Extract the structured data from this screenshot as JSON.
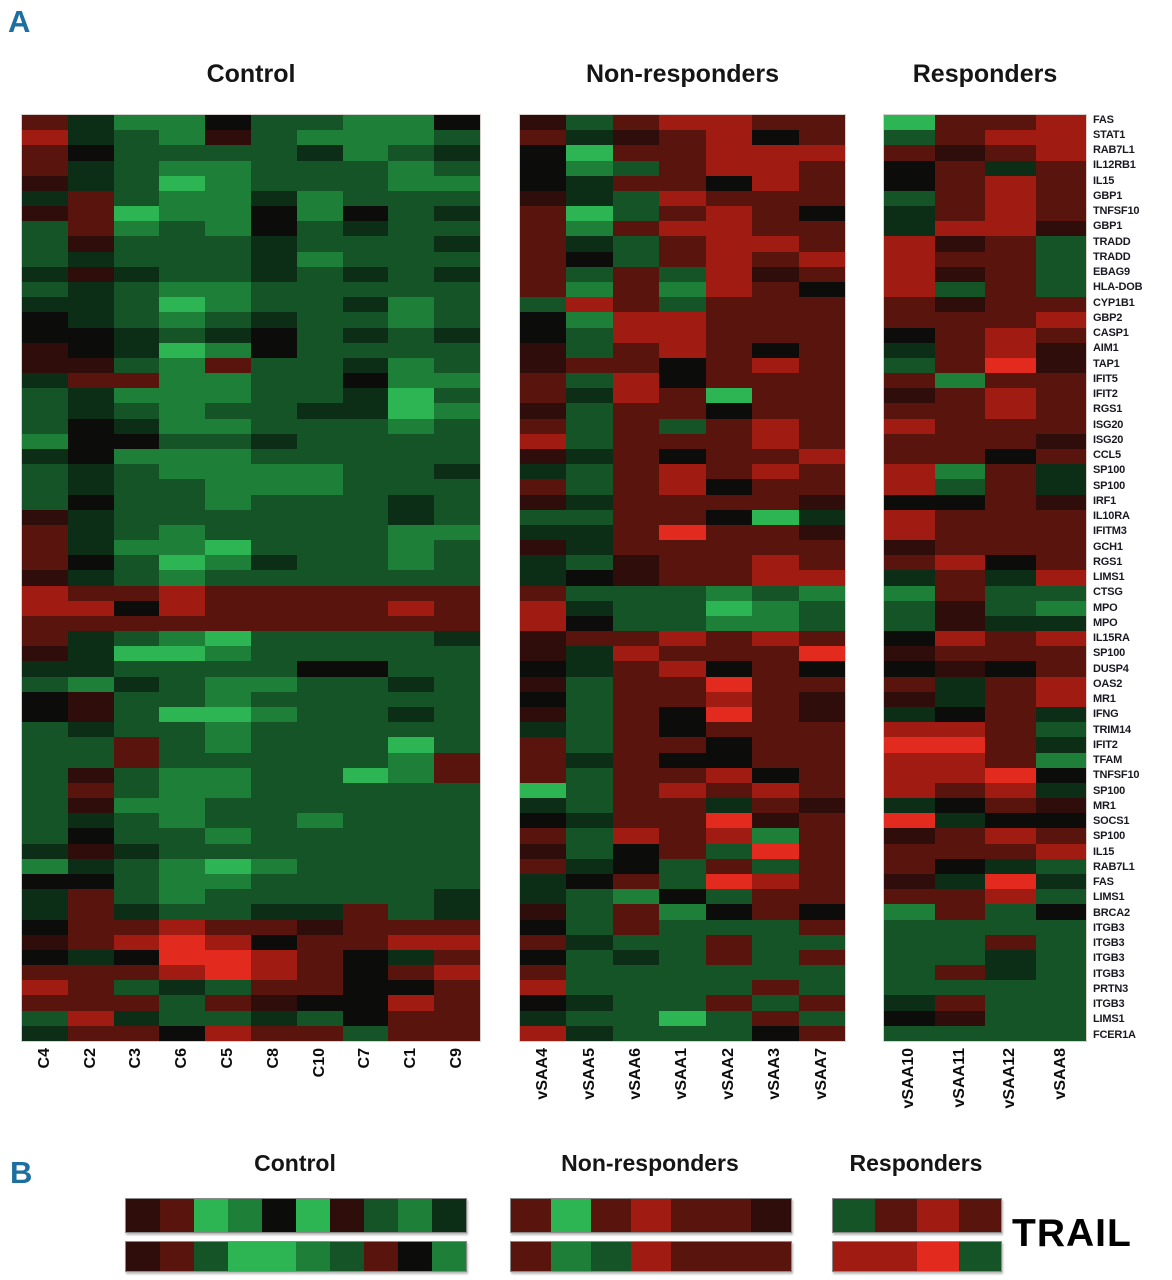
{
  "panel_a": {
    "label": "A"
  },
  "panel_b": {
    "label": "B",
    "titles": {
      "control": "Control",
      "non_responders": "Non-responders",
      "responders": "Responders"
    },
    "trail_label": "TRAIL",
    "groups": [
      {
        "id": "control",
        "rows": [
          "ab4304a231",
          "ab24432b03"
        ]
      },
      {
        "id": "non_responders",
        "rows": [
          "b4bcbba",
          "b32cbbb"
        ]
      },
      {
        "id": "responders",
        "rows": [
          "2bcb",
          "ccd2"
        ]
      }
    ]
  },
  "chart_data": {
    "type": "heatmap",
    "title": "Gene expression heatmap (red = high, green = low) for Control, Non-responder and Responder samples",
    "palette": {
      "4": "#2db554",
      "3": "#1e8038",
      "2": "#155426",
      "1": "#0d2e16",
      "0": "#0c0d0a",
      "a": "#2e0d0a",
      "b": "#5a140e",
      "c": "#a01b12",
      "d": "#e22b1e"
    },
    "genes": [
      "FAS",
      "STAT1",
      "RAB7L1",
      "IL12RB1",
      "IL15",
      "GBP1",
      "TNFSF10",
      "GBP1",
      "TRADD",
      "TRADD",
      "EBAG9",
      "HLA-DOB",
      "CYP1B1",
      "GBP2",
      "CASP1",
      "AIM1",
      "TAP1",
      "IFIT5",
      "IFIT2",
      "RGS1",
      "ISG20",
      "ISG20",
      "CCL5",
      "SP100",
      "SP100",
      "IRF1",
      "IL10RA",
      "IFITM3",
      "GCH1",
      "RGS1",
      "LIMS1",
      "CTSG",
      "MPO",
      "MPO",
      "IL15RA",
      "SP100",
      "DUSP4",
      "OAS2",
      "MR1",
      "IFNG",
      "TRIM14",
      "IFIT2",
      "TFAM",
      "TNFSF10",
      "SP100",
      "MR1",
      "SOCS1",
      "SP100",
      "IL15",
      "RAB7L1",
      "FAS",
      "LIMS1",
      "BRCA2",
      "ITGB3",
      "ITGB3",
      "ITGB3",
      "ITGB3",
      "PRTN3",
      "ITGB3",
      "LIMS1",
      "FCER1A"
    ],
    "groups": [
      {
        "id": "control",
        "title": "Control",
        "columns": [
          "C4",
          "C2",
          "C3",
          "C6",
          "C5",
          "C8",
          "C10",
          "C7",
          "C1",
          "C9"
        ],
        "matrix": [
          "b133022330",
          "c123a23332",
          "b022221321",
          "b123322232",
          "a124322233",
          "1b23313222",
          "ab43303021",
          "2b32302122",
          "2a22212221",
          "2122213222",
          "1a12212121",
          "2123322222",
          "1124322132",
          "0123212232",
          "0012102121",
          "a014302222",
          "aa23b22132",
          "1bb3322033",
          "2133322142",
          "2123221143",
          "2013322232",
          "3002212222",
          "1033322222",
          "2123333221",
          "2122333222",
          "2022322212",
          "a122222212",
          "b123222233",
          "b133422232",
          "b024312232",
          "a123222222",
          "cbbcbbbbbb",
          "cc0cbbbbcb",
          "bbbbbbbbbb",
          "b123422221",
          "a144322222",
          "1122220022",
          "2312332212",
          "0a22322222",
          "0a24432212",
          "2122322222",
          "22b2322242",
          "22b222223b",
          "2a2332243b",
          "2b23322222",
          "2a33222222",
          "2123223222",
          "2022322222",
          "1a12222222",
          "3123432222",
          "0023322222",
          "1b23222221",
          "1b12211b21",
          "0bbcbbabbb",
          "abcdc0bbcc",
          "010ddcb01b",
          "bbbcdcb0bc",
          "cb212bb00b",
          "bbb2ba00cb",
          "2c122120bb",
          "1bb0cbb2bb"
        ]
      },
      {
        "id": "non_responders",
        "title": "Non-responders",
        "columns": [
          "vSAA4",
          "vSAA5",
          "vSAA6",
          "vSAA1",
          "vSAA2",
          "vSAA3",
          "vSAA7"
        ],
        "matrix": [
          "a2bccbb",
          "b1abc0b",
          "04bbccc",
          "032bccb",
          "01bb0cb",
          "a12cbbb",
          "b42bcb0",
          "b3bccbb",
          "b12bccb",
          "b02bcbc",
          "b2b2cab",
          "b3b3cb0",
          "2cb2bbb",
          "03ccbbb",
          "02ccbbb",
          "a2bcb0b",
          "abb0bcb",
          "b2c0bbb",
          "b1cb4bb",
          "a2bb0bb",
          "b2b2bcb",
          "c2bbbcb",
          "a1b0bbc",
          "12bcbcb",
          "b2bc0bb",
          "a1bbbba",
          "22bb041",
          "11bdbba",
          "a1bbbbb",
          "12abbcb",
          "10abbcc",
          "b222323",
          "c122432",
          "c022332",
          "abbcbcb",
          "a1cbbbd",
          "01bc0b0",
          "a2bbdbb",
          "02bbcba",
          "a2b0dba",
          "12b0bbb",
          "b2bb0bb",
          "b1b00bb",
          "b2bbc0b",
          "42bcbcb",
          "12bb1ba",
          "01bbdab",
          "b2cbc3b",
          "a20b2db",
          "b102b2b",
          "10b2dcb",
          "12302bb",
          "a2b30b0",
          "02b222b",
          "b122b22",
          "0212b2b",
          "b222222",
          "c2222b2",
          "0122b2b",
          "12242b2",
          "c12220b"
        ]
      },
      {
        "id": "responders",
        "title": "Responders",
        "columns": [
          "vSAA10",
          "vSAA11",
          "vSAA12",
          "vSAA8"
        ],
        "matrix": [
          "4bbc",
          "2bcc",
          "babc",
          "0b1b",
          "0bcb",
          "2bcb",
          "1bcb",
          "1cca",
          "cab2",
          "cbb2",
          "cab2",
          "c2b2",
          "babb",
          "bbbc",
          "0bcb",
          "1bca",
          "2bda",
          "b3bb",
          "abcb",
          "bbcb",
          "cbbb",
          "bbba",
          "bb0b",
          "c3b1",
          "c2b1",
          "00ba",
          "cbbb",
          "cbbb",
          "abbb",
          "bc0b",
          "1b1c",
          "3b22",
          "2a23",
          "2a11",
          "0cbc",
          "abbb",
          "0a0b",
          "b1bc",
          "a1bc",
          "10b1",
          "ccb2",
          "ddb1",
          "ccb3",
          "ccd0",
          "cbc1",
          "10ba",
          "d100",
          "abcb",
          "bbbc",
          "b012",
          "a1d1",
          "bbc2",
          "3b20",
          "2222",
          "22b2",
          "2212",
          "2b12",
          "2222",
          "1b22",
          "0a22",
          "2222"
        ]
      }
    ]
  }
}
